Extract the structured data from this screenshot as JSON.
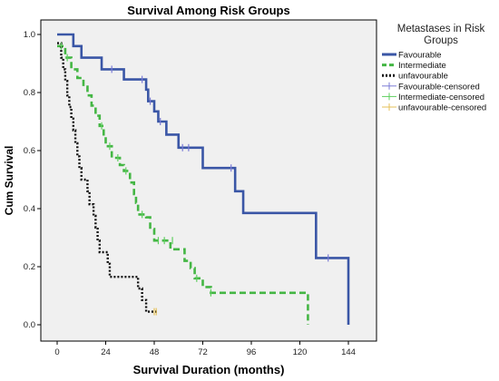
{
  "chart_data": {
    "type": "line",
    "title": "Survival Among Risk Groups",
    "xlabel": "Survival Duration (months)",
    "ylabel": "Cum Survival",
    "xlim": [
      0,
      144
    ],
    "ylim": [
      0,
      1.0
    ],
    "x_ticks": [
      0,
      24,
      48,
      72,
      96,
      120,
      144
    ],
    "y_ticks": [
      0.0,
      0.2,
      0.4,
      0.6,
      0.8,
      1.0
    ],
    "grid": false,
    "background": "#f0f0f0",
    "legend": {
      "title_line1": "Metastases in Risk",
      "title_line2": "Groups",
      "placement": "right",
      "entries": [
        {
          "label": "Favourable",
          "color": "#3a56a6",
          "style": "solid",
          "kind": "line"
        },
        {
          "label": "Intermediate",
          "color": "#44b644",
          "style": "dashed",
          "kind": "line"
        },
        {
          "label": "unfavourable",
          "color": "#111111",
          "style": "dotted",
          "kind": "line"
        },
        {
          "label": "Favourable-censored",
          "color": "#7b7bd6",
          "kind": "cross"
        },
        {
          "label": "Intermediate-censored",
          "color": "#5fcf5f",
          "kind": "cross"
        },
        {
          "label": "unfavourable-censored",
          "color": "#e6c25a",
          "kind": "cross"
        }
      ]
    },
    "series": [
      {
        "name": "Favourable",
        "color": "#3a56a6",
        "style": "solid",
        "width": 2.6,
        "steps": [
          [
            0,
            1.0
          ],
          [
            8,
            0.96
          ],
          [
            12,
            0.92
          ],
          [
            22,
            0.88
          ],
          [
            33,
            0.845
          ],
          [
            44,
            0.81
          ],
          [
            45,
            0.77
          ],
          [
            48,
            0.735
          ],
          [
            50,
            0.7
          ],
          [
            54,
            0.655
          ],
          [
            60,
            0.61
          ],
          [
            72,
            0.54
          ],
          [
            88,
            0.46
          ],
          [
            92,
            0.385
          ],
          [
            128,
            0.23
          ],
          [
            144,
            0.0
          ]
        ],
        "end_x": 144,
        "censored": [
          [
            27,
            0.88
          ],
          [
            42,
            0.845
          ],
          [
            46,
            0.77
          ],
          [
            51,
            0.7
          ],
          [
            62,
            0.61
          ],
          [
            65,
            0.61
          ],
          [
            86,
            0.54
          ],
          [
            134,
            0.23
          ]
        ]
      },
      {
        "name": "Intermediate",
        "color": "#44b644",
        "style": "dashed",
        "width": 2.6,
        "steps": [
          [
            0,
            0.96
          ],
          [
            4,
            0.92
          ],
          [
            7,
            0.88
          ],
          [
            10,
            0.85
          ],
          [
            13,
            0.82
          ],
          [
            15,
            0.79
          ],
          [
            17,
            0.755
          ],
          [
            19,
            0.72
          ],
          [
            21,
            0.685
          ],
          [
            23,
            0.65
          ],
          [
            24,
            0.615
          ],
          [
            27,
            0.575
          ],
          [
            31,
            0.55
          ],
          [
            33,
            0.53
          ],
          [
            36,
            0.49
          ],
          [
            38,
            0.45
          ],
          [
            39,
            0.42
          ],
          [
            40,
            0.38
          ],
          [
            44,
            0.37
          ],
          [
            46,
            0.33
          ],
          [
            48,
            0.29
          ],
          [
            56,
            0.26
          ],
          [
            63,
            0.22
          ],
          [
            66,
            0.195
          ],
          [
            68,
            0.16
          ],
          [
            72,
            0.13
          ],
          [
            76,
            0.11
          ],
          [
            124,
            0.0
          ]
        ],
        "end_x": 124,
        "censored": [
          [
            2,
            0.96
          ],
          [
            5,
            0.92
          ],
          [
            22,
            0.685
          ],
          [
            26,
            0.615
          ],
          [
            30,
            0.575
          ],
          [
            34,
            0.53
          ],
          [
            42,
            0.38
          ],
          [
            50,
            0.29
          ],
          [
            53,
            0.29
          ],
          [
            57,
            0.29
          ],
          [
            69,
            0.16
          ],
          [
            76,
            0.11
          ]
        ]
      },
      {
        "name": "unfavourable",
        "color": "#111111",
        "style": "dotted",
        "width": 2.4,
        "steps": [
          [
            0,
            0.97
          ],
          [
            2,
            0.92
          ],
          [
            3,
            0.88
          ],
          [
            4,
            0.84
          ],
          [
            5,
            0.79
          ],
          [
            6,
            0.75
          ],
          [
            7,
            0.71
          ],
          [
            8,
            0.67
          ],
          [
            9,
            0.625
          ],
          [
            10,
            0.58
          ],
          [
            11,
            0.54
          ],
          [
            12,
            0.5
          ],
          [
            15,
            0.46
          ],
          [
            16,
            0.415
          ],
          [
            18,
            0.375
          ],
          [
            19,
            0.335
          ],
          [
            20,
            0.29
          ],
          [
            21,
            0.25
          ],
          [
            25,
            0.21
          ],
          [
            26,
            0.165
          ],
          [
            40,
            0.125
          ],
          [
            42,
            0.085
          ],
          [
            44,
            0.045
          ],
          [
            50,
            0.045
          ]
        ],
        "end_x": 50,
        "censored": [
          [
            48,
            0.045
          ],
          [
            49,
            0.045
          ]
        ]
      }
    ]
  }
}
